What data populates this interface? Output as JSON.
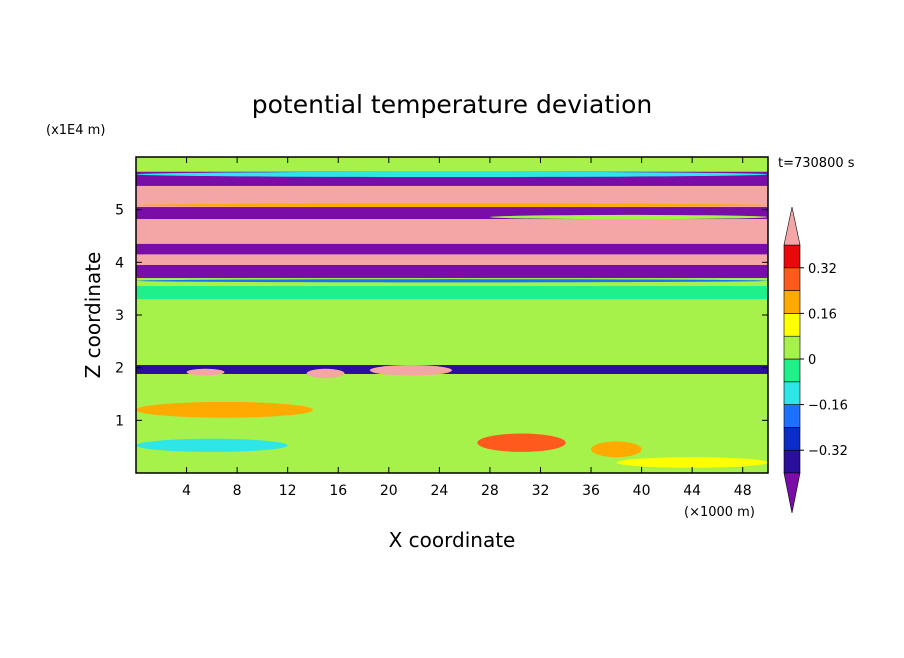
{
  "chart_data": {
    "type": "heatmap",
    "title": "potential temperature deviation",
    "time_label": "t=730800 s",
    "xlabel": "X coordinate",
    "ylabel": "Z coordinate",
    "x_unit": "(×1000 m)",
    "y_unit": "(x1E4 m)",
    "xlim": [
      0,
      50
    ],
    "ylim": [
      0,
      6
    ],
    "x_ticks": [
      "4",
      "8",
      "12",
      "16",
      "20",
      "24",
      "28",
      "32",
      "36",
      "40",
      "44",
      "48"
    ],
    "y_ticks": [
      "1",
      "2",
      "3",
      "4",
      "5"
    ],
    "colorbar": {
      "tick_labels": [
        "0.32",
        "0.16",
        "0",
        "-0.16",
        "-0.32"
      ],
      "levels": [
        -0.4,
        -0.32,
        -0.24,
        -0.16,
        -0.08,
        0,
        0.08,
        0.16,
        0.24,
        0.32,
        0.4
      ],
      "colors": [
        "#7a0ca8",
        "#2a0f9c",
        "#0c2cc8",
        "#1c72ff",
        "#2ee6e6",
        "#1ff08a",
        "#a6f24a",
        "#ffff00",
        "#ffaa00",
        "#ff5a1e",
        "#e80a0a",
        "#f4a6a6"
      ]
    },
    "bands": [
      {
        "z": [
          5.72,
          6.0
        ],
        "value": 0.05
      },
      {
        "z": [
          5.45,
          5.72
        ],
        "value": -0.45
      },
      {
        "z": [
          5.05,
          5.45
        ],
        "value": 0.45
      },
      {
        "z": [
          4.82,
          5.05
        ],
        "value": -0.45
      },
      {
        "z": [
          4.35,
          4.82
        ],
        "value": 0.45
      },
      {
        "z": [
          4.15,
          4.35
        ],
        "value": -0.45
      },
      {
        "z": [
          3.95,
          4.15
        ],
        "value": 0.45
      },
      {
        "z": [
          3.7,
          3.95
        ],
        "value": -0.45
      },
      {
        "z": [
          3.55,
          3.7
        ],
        "value": 0.05
      },
      {
        "z": [
          3.3,
          3.55
        ],
        "value": -0.02
      },
      {
        "z": [
          2.2,
          3.3
        ],
        "value": 0.05
      },
      {
        "z": [
          1.88,
          2.05
        ],
        "value": -0.35
      },
      {
        "z": [
          1.5,
          1.88
        ],
        "value": 0.02
      },
      {
        "z": [
          0.95,
          1.5
        ],
        "value": 0.05
      },
      {
        "z": [
          0.0,
          0.95
        ],
        "value": 0.02
      }
    ],
    "patches": [
      {
        "x": [
          0,
          50
        ],
        "z": [
          5.62,
          5.72
        ],
        "value": -0.1
      },
      {
        "x": [
          0,
          50
        ],
        "z": [
          5.05,
          5.12
        ],
        "value": 0.2
      },
      {
        "x": [
          28,
          50
        ],
        "z": [
          4.82,
          4.9
        ],
        "value": 0.0
      },
      {
        "x": [
          13.5,
          16.5
        ],
        "z": [
          1.8,
          1.98
        ],
        "value": 0.45
      },
      {
        "x": [
          18.5,
          25
        ],
        "z": [
          1.85,
          2.05
        ],
        "value": 0.45
      },
      {
        "x": [
          4,
          7
        ],
        "z": [
          1.85,
          1.98
        ],
        "value": 0.45
      },
      {
        "x": [
          0,
          14
        ],
        "z": [
          1.05,
          1.35
        ],
        "value": 0.2
      },
      {
        "x": [
          27,
          34
        ],
        "z": [
          0.4,
          0.75
        ],
        "value": 0.25
      },
      {
        "x": [
          36,
          40
        ],
        "z": [
          0.3,
          0.6
        ],
        "value": 0.2
      },
      {
        "x": [
          0,
          12
        ],
        "z": [
          0.4,
          0.65
        ],
        "value": -0.12
      },
      {
        "x": [
          38,
          50
        ],
        "z": [
          0.1,
          0.3
        ],
        "value": 0.15
      },
      {
        "x": [
          0,
          50
        ],
        "z": [
          3.62,
          3.68
        ],
        "value": -0.18
      }
    ]
  }
}
